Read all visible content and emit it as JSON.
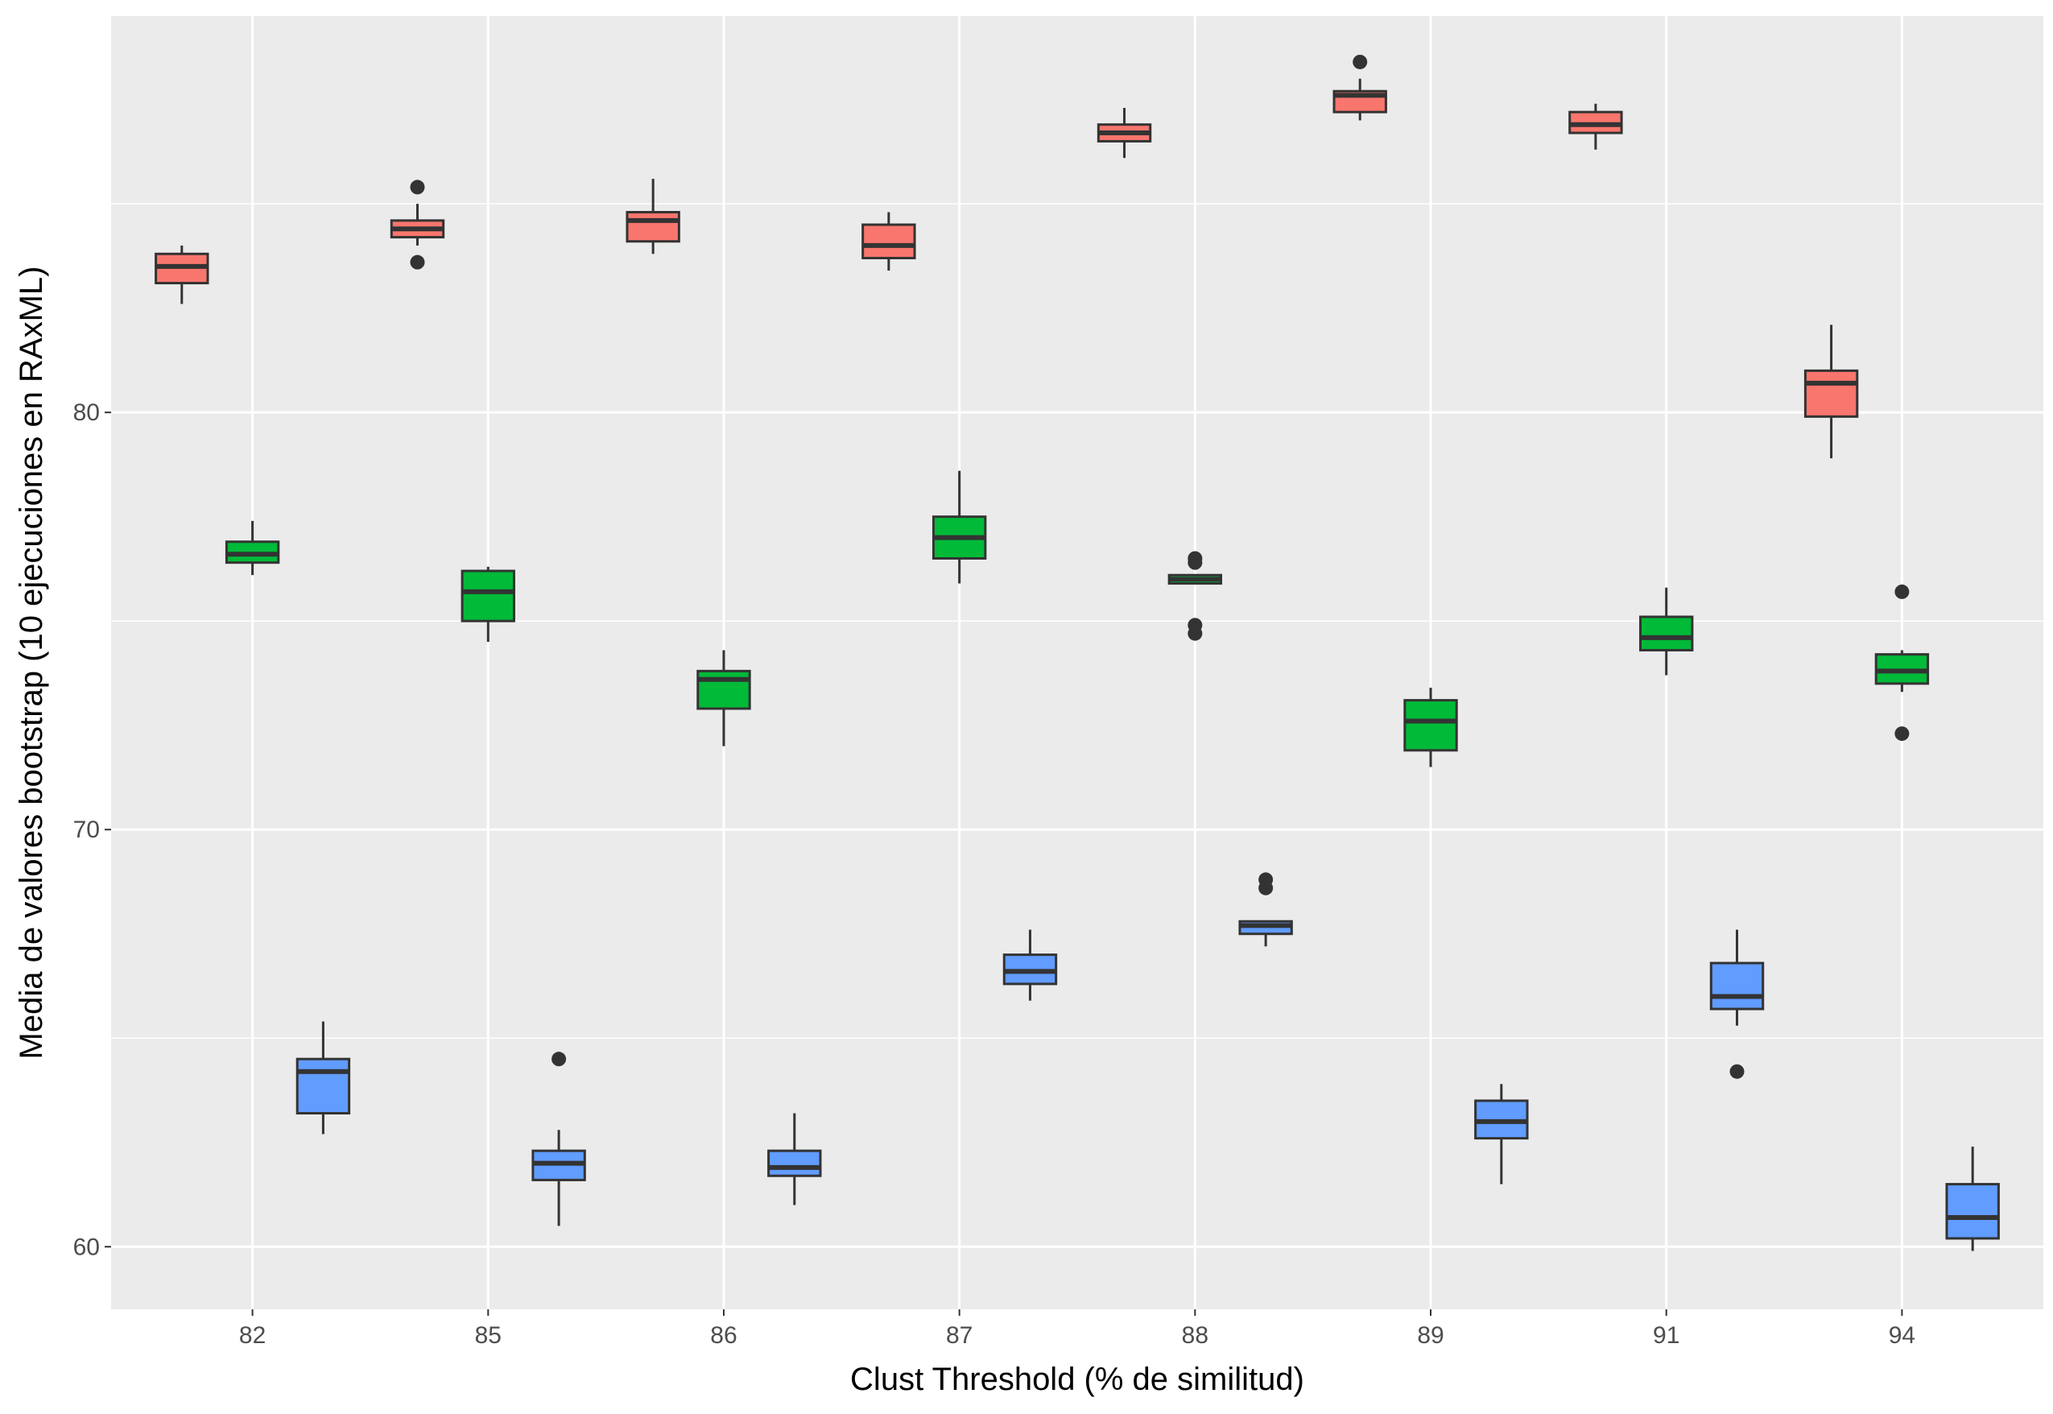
{
  "chart_data": {
    "type": "boxplot",
    "title": "",
    "xlabel": "Clust Threshold (% de similitud)",
    "ylabel": "Media de valores bootstrap (10 ejecuciones en RAxML)",
    "categories": [
      "82",
      "85",
      "86",
      "87",
      "88",
      "89",
      "91",
      "94"
    ],
    "ylim": [
      58.5,
      89.5
    ],
    "yticks": [
      60,
      70,
      80
    ],
    "grid": true,
    "legend": "none",
    "panel_background": "#EBEBEB",
    "series": [
      {
        "color": "#F8766D",
        "boxes": [
          {
            "whisker_low": 82.6,
            "q1": 83.1,
            "median": 83.5,
            "q3": 83.8,
            "whisker_high": 84.0,
            "outliers": []
          },
          {
            "whisker_low": 84.0,
            "q1": 84.2,
            "median": 84.4,
            "q3": 84.6,
            "whisker_high": 85.0,
            "outliers": [
              85.4,
              83.6
            ]
          },
          {
            "whisker_low": 83.8,
            "q1": 84.1,
            "median": 84.6,
            "q3": 84.8,
            "whisker_high": 85.6,
            "outliers": []
          },
          {
            "whisker_low": 83.4,
            "q1": 83.7,
            "median": 84.0,
            "q3": 84.5,
            "whisker_high": 84.8,
            "outliers": []
          },
          {
            "whisker_low": 86.1,
            "q1": 86.5,
            "median": 86.7,
            "q3": 86.9,
            "whisker_high": 87.3,
            "outliers": []
          },
          {
            "whisker_low": 87.0,
            "q1": 87.2,
            "median": 87.6,
            "q3": 87.7,
            "whisker_high": 88.0,
            "outliers": [
              88.4
            ]
          },
          {
            "whisker_low": 86.3,
            "q1": 86.7,
            "median": 86.9,
            "q3": 87.2,
            "whisker_high": 87.4,
            "outliers": []
          },
          {
            "whisker_low": 78.9,
            "q1": 79.9,
            "median": 80.7,
            "q3": 81.0,
            "whisker_high": 82.1,
            "outliers": []
          }
        ]
      },
      {
        "color": "#00BA38",
        "boxes": [
          {
            "whisker_low": 76.1,
            "q1": 76.4,
            "median": 76.6,
            "q3": 76.9,
            "whisker_high": 77.4,
            "outliers": []
          },
          {
            "whisker_low": 74.5,
            "q1": 75.0,
            "median": 75.7,
            "q3": 76.2,
            "whisker_high": 76.3,
            "outliers": []
          },
          {
            "whisker_low": 72.0,
            "q1": 72.9,
            "median": 73.6,
            "q3": 73.8,
            "whisker_high": 74.3,
            "outliers": []
          },
          {
            "whisker_low": 75.9,
            "q1": 76.5,
            "median": 77.0,
            "q3": 77.5,
            "whisker_high": 78.6,
            "outliers": []
          },
          {
            "whisker_low": 75.9,
            "q1": 75.9,
            "median": 76.0,
            "q3": 76.1,
            "whisker_high": 76.1,
            "outliers": [
              76.5,
              76.4,
              74.9,
              74.7
            ]
          },
          {
            "whisker_low": 71.5,
            "q1": 71.9,
            "median": 72.6,
            "q3": 73.1,
            "whisker_high": 73.4,
            "outliers": []
          },
          {
            "whisker_low": 73.7,
            "q1": 74.3,
            "median": 74.6,
            "q3": 75.1,
            "whisker_high": 75.8,
            "outliers": []
          },
          {
            "whisker_low": 73.3,
            "q1": 73.5,
            "median": 73.8,
            "q3": 74.2,
            "whisker_high": 74.3,
            "outliers": [
              75.7,
              72.3
            ]
          }
        ]
      },
      {
        "color": "#619CFF",
        "boxes": [
          {
            "whisker_low": 62.7,
            "q1": 63.2,
            "median": 64.2,
            "q3": 64.5,
            "whisker_high": 65.4,
            "outliers": []
          },
          {
            "whisker_low": 60.5,
            "q1": 61.6,
            "median": 62.0,
            "q3": 62.3,
            "whisker_high": 62.8,
            "outliers": [
              64.5
            ]
          },
          {
            "whisker_low": 61.0,
            "q1": 61.7,
            "median": 61.9,
            "q3": 62.3,
            "whisker_high": 63.2,
            "outliers": []
          },
          {
            "whisker_low": 65.9,
            "q1": 66.3,
            "median": 66.6,
            "q3": 67.0,
            "whisker_high": 67.6,
            "outliers": []
          },
          {
            "whisker_low": 67.2,
            "q1": 67.5,
            "median": 67.7,
            "q3": 67.8,
            "whisker_high": 67.8,
            "outliers": [
              68.8,
              68.6
            ]
          },
          {
            "whisker_low": 61.5,
            "q1": 62.6,
            "median": 63.0,
            "q3": 63.5,
            "whisker_high": 63.9,
            "outliers": []
          },
          {
            "whisker_low": 65.3,
            "q1": 65.7,
            "median": 66.0,
            "q3": 66.8,
            "whisker_high": 67.6,
            "outliers": [
              64.2
            ]
          },
          {
            "whisker_low": 59.9,
            "q1": 60.2,
            "median": 60.7,
            "q3": 61.5,
            "whisker_high": 62.4,
            "outliers": []
          }
        ]
      }
    ]
  }
}
